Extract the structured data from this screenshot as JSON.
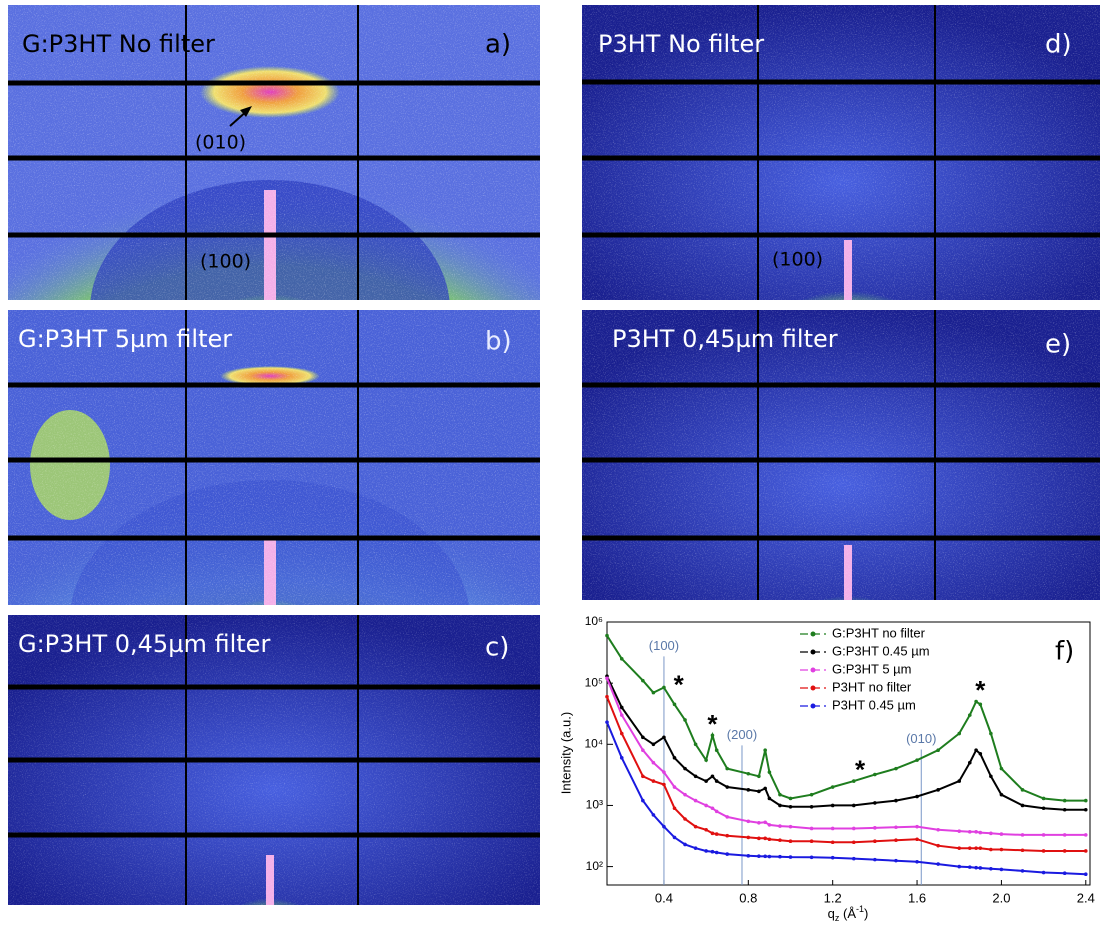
{
  "panels": [
    {
      "title": "G:P3HT  No filter",
      "letter": "a)",
      "annotations": [
        "(010)",
        "(100)"
      ]
    },
    {
      "title": "G:P3HT  5µm filter",
      "letter": "b)"
    },
    {
      "title": "G:P3HT  0,45µm filter",
      "letter": "c)"
    },
    {
      "title": "P3HT  No filter",
      "letter": "d)",
      "annotations": [
        "(100)"
      ]
    },
    {
      "title": "P3HT  0,45µm filter",
      "letter": "e)"
    }
  ],
  "chart_data": {
    "type": "line",
    "panel_label": "f)",
    "y_label": "Intensity (a.u.)",
    "x_label_parts": [
      "q",
      "z",
      " (Å",
      "-1",
      ")"
    ],
    "log_y": true,
    "legend": "upper right",
    "xlim": [
      0.13,
      2.42
    ],
    "ylim": [
      50,
      1000000
    ],
    "xticks": [
      0.4,
      0.8,
      1.2,
      1.6,
      {
        "value": 2,
        "label": "2.0"
      },
      2.4
    ],
    "yticks": [
      {
        "value": 100,
        "label": "10²"
      },
      {
        "value": 1000,
        "label": "10³"
      },
      {
        "value": 10000,
        "label": "10⁴"
      },
      {
        "value": 100000,
        "label": "10⁵"
      },
      {
        "value": 1000000,
        "label": "10⁶"
      }
    ],
    "reference_lines": [
      {
        "x": 0.4,
        "label": "(100)",
        "label_y": 400000
      },
      {
        "x": 0.77,
        "label": "(200)",
        "label_y": 14000
      },
      {
        "x": 1.62,
        "label": "(010)",
        "label_y": 12000
      }
    ],
    "annotations": [
      {
        "text": "*",
        "x": 0.47,
        "y": 110000
      },
      {
        "text": "*",
        "x": 0.63,
        "y": 25000
      },
      {
        "text": "*",
        "x": 1.33,
        "y": 4500
      },
      {
        "text": "*",
        "x": 1.9,
        "y": 90000
      }
    ],
    "x": [
      0.13,
      0.2,
      0.3,
      0.35,
      0.4,
      0.45,
      0.5,
      0.55,
      0.6,
      0.63,
      0.65,
      0.7,
      0.8,
      0.85,
      0.88,
      0.9,
      0.95,
      1.0,
      1.1,
      1.2,
      1.3,
      1.4,
      1.5,
      1.6,
      1.7,
      1.8,
      1.85,
      1.88,
      1.9,
      1.95,
      2.0,
      2.1,
      2.2,
      2.3,
      2.4
    ],
    "series": [
      {
        "name": "G:P3HT no filter",
        "color": "#1e7d1e",
        "values": [
          600000,
          250000,
          110000,
          70000,
          85000,
          45000,
          25000,
          10000,
          5500,
          14000,
          8000,
          4000,
          3300,
          3000,
          8000,
          3500,
          1500,
          1300,
          1500,
          2000,
          2500,
          3200,
          4000,
          5500,
          8000,
          15000,
          30000,
          50000,
          45000,
          15000,
          4000,
          1800,
          1300,
          1200,
          1200
        ]
      },
      {
        "name": "G:P3HT 0.45 µm",
        "color": "#000000",
        "values": [
          130000,
          40000,
          13000,
          10000,
          13000,
          6000,
          4000,
          3000,
          2500,
          3000,
          2500,
          2000,
          1800,
          1700,
          1900,
          1300,
          1000,
          950,
          950,
          1000,
          1000,
          1100,
          1200,
          1400,
          1800,
          2500,
          5000,
          8000,
          7000,
          3000,
          1500,
          1000,
          900,
          850,
          850
        ]
      },
      {
        "name": "G:P3HT 5 µm",
        "color": "#e040e0",
        "values": [
          120000,
          30000,
          8000,
          5000,
          3500,
          2000,
          1500,
          1200,
          1000,
          900,
          800,
          650,
          550,
          520,
          530,
          480,
          460,
          450,
          420,
          420,
          420,
          430,
          440,
          450,
          400,
          380,
          370,
          370,
          360,
          350,
          340,
          330,
          330,
          330,
          330
        ]
      },
      {
        "name": "P3HT no filter",
        "color": "#e01010",
        "values": [
          60000,
          15000,
          3000,
          2500,
          2200,
          900,
          600,
          450,
          400,
          350,
          340,
          320,
          300,
          290,
          290,
          280,
          270,
          260,
          260,
          250,
          250,
          260,
          270,
          280,
          220,
          200,
          200,
          200,
          200,
          190,
          190,
          185,
          180,
          180,
          180
        ]
      },
      {
        "name": "P3HT 0.45 µm",
        "color": "#1a1ae0",
        "values": [
          23000,
          6000,
          1200,
          700,
          450,
          300,
          230,
          200,
          180,
          175,
          170,
          160,
          150,
          148,
          147,
          146,
          145,
          143,
          142,
          140,
          135,
          130,
          125,
          120,
          110,
          100,
          98,
          96,
          95,
          92,
          90,
          85,
          80,
          78,
          75
        ]
      }
    ]
  }
}
